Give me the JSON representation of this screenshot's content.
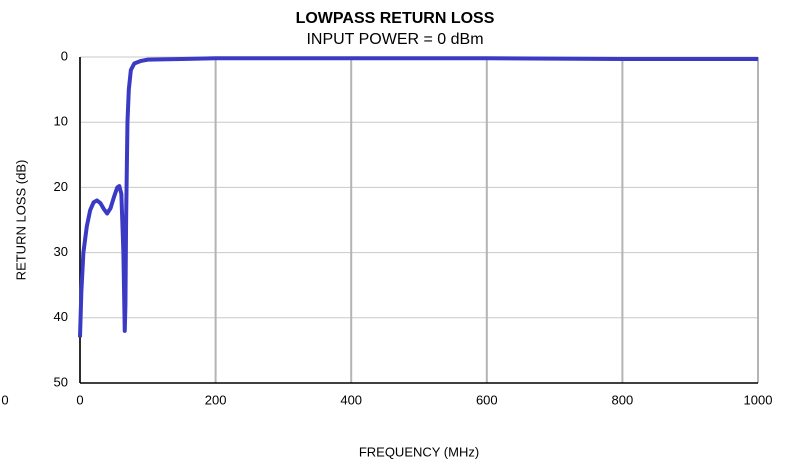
{
  "chart_data": {
    "type": "line",
    "title": "LOWPASS RETURN LOSS",
    "subtitle": "INPUT POWER = 0 dBm",
    "x_label": "FREQUENCY (MHz)",
    "y_label": "RETURN LOSS (dB)",
    "annotations": [
      "0"
    ],
    "x": [
      0,
      2,
      5,
      10,
      15,
      20,
      25,
      30,
      35,
      40,
      45,
      50,
      55,
      58,
      61,
      64,
      66,
      67,
      68,
      70,
      72,
      75,
      80,
      90,
      100,
      150,
      200,
      400,
      600,
      800,
      1000
    ],
    "series": [
      {
        "name": "RETURN LOSS",
        "color": "#3a3ac4",
        "values": [
          43,
          36,
          30,
          26,
          23.5,
          22.3,
          22,
          22.4,
          23.3,
          24,
          23.2,
          21.5,
          20,
          19.8,
          21,
          30,
          42,
          38,
          25,
          10,
          5,
          2,
          1,
          0.6,
          0.4,
          0.3,
          0.2,
          0.2,
          0.2,
          0.3,
          0.3
        ]
      }
    ],
    "xlim": [
      0,
      1000
    ],
    "xticks": [
      0,
      200,
      400,
      600,
      800,
      1000
    ],
    "ylim": [
      0,
      50
    ],
    "yticks": [
      0,
      10,
      20,
      30,
      40,
      50
    ],
    "y_inverted": true,
    "grid": true
  }
}
